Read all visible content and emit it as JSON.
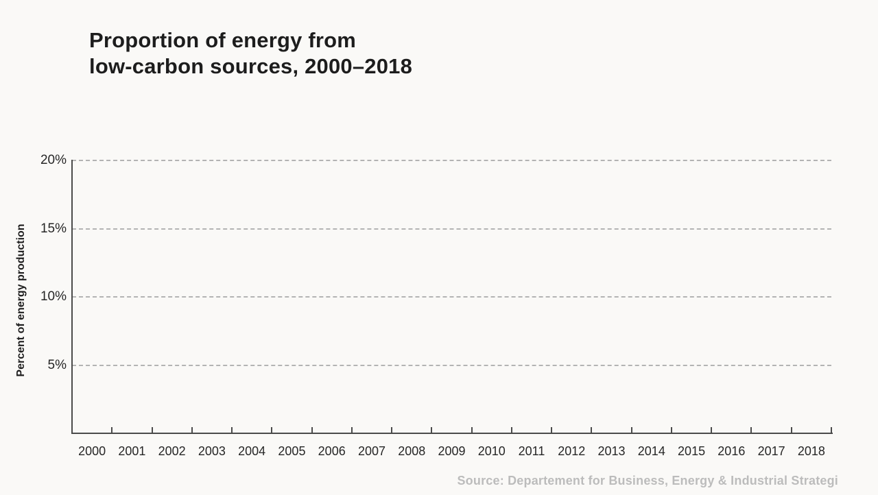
{
  "header": {
    "title_lines": [
      "Proportion of energy from",
      "low-carbon sources, 2000–2018"
    ]
  },
  "chart_data": {
    "type": "line",
    "title": "Proportion of energy from low-carbon sources, 2000–2018",
    "categories": [
      "2000",
      "2001",
      "2002",
      "2003",
      "2004",
      "2005",
      "2006",
      "2007",
      "2008",
      "2009",
      "2010",
      "2011",
      "2012",
      "2013",
      "2014",
      "2015",
      "2016",
      "2017",
      "2018"
    ],
    "series": [],
    "xlabel": "",
    "ylabel": "Percent of energy production",
    "ytick_labels": [
      "20%",
      "15%",
      "10%",
      "5%"
    ],
    "ytick_values": [
      20,
      15,
      10,
      5
    ],
    "ylim": [
      0,
      20
    ],
    "grid": "horizontal-dashed",
    "legend": "none"
  },
  "footer": {
    "source": "Source: Departement for Business, Energy & Industrial Strategi"
  },
  "colors": {
    "background": "#faf9f7",
    "title": "#1d1d1d",
    "axis_line": "#4a4a4a",
    "tick_label": "#262626",
    "gridline": "#b3b3b3",
    "source_text": "#bcbcbc"
  }
}
